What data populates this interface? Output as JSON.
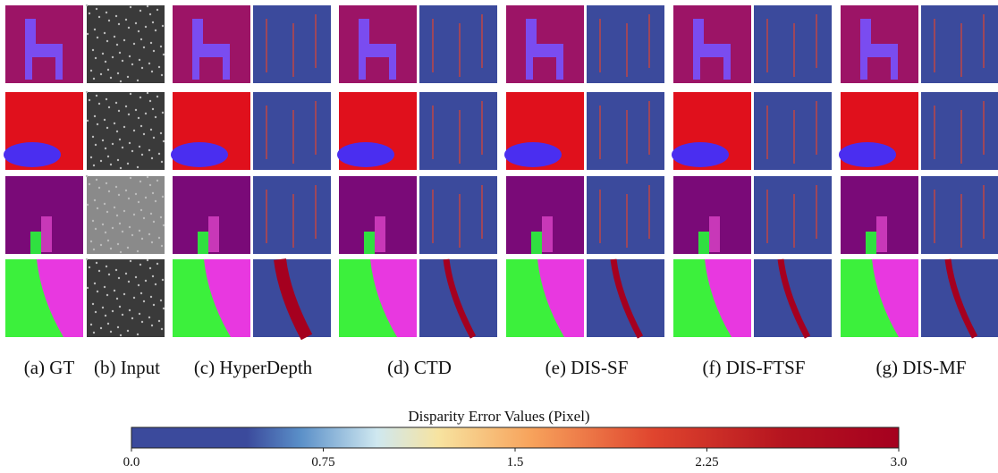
{
  "figure": {
    "captions": [
      "(a) GT",
      "(b) Input",
      "(c) HyperDepth",
      "(d) CTD",
      "(e) DIS-SF",
      "(f) DIS-FTSF",
      "(g) DIS-MF"
    ],
    "colorbar": {
      "title": "Disparity Error Values (Pixel)",
      "lim": [
        0,
        3
      ],
      "ticks": [
        {
          "value": 0,
          "label": "0.0"
        },
        0.75,
        1.5,
        2.25,
        {
          "value": 3,
          "label": "3.0"
        }
      ]
    }
  }
}
